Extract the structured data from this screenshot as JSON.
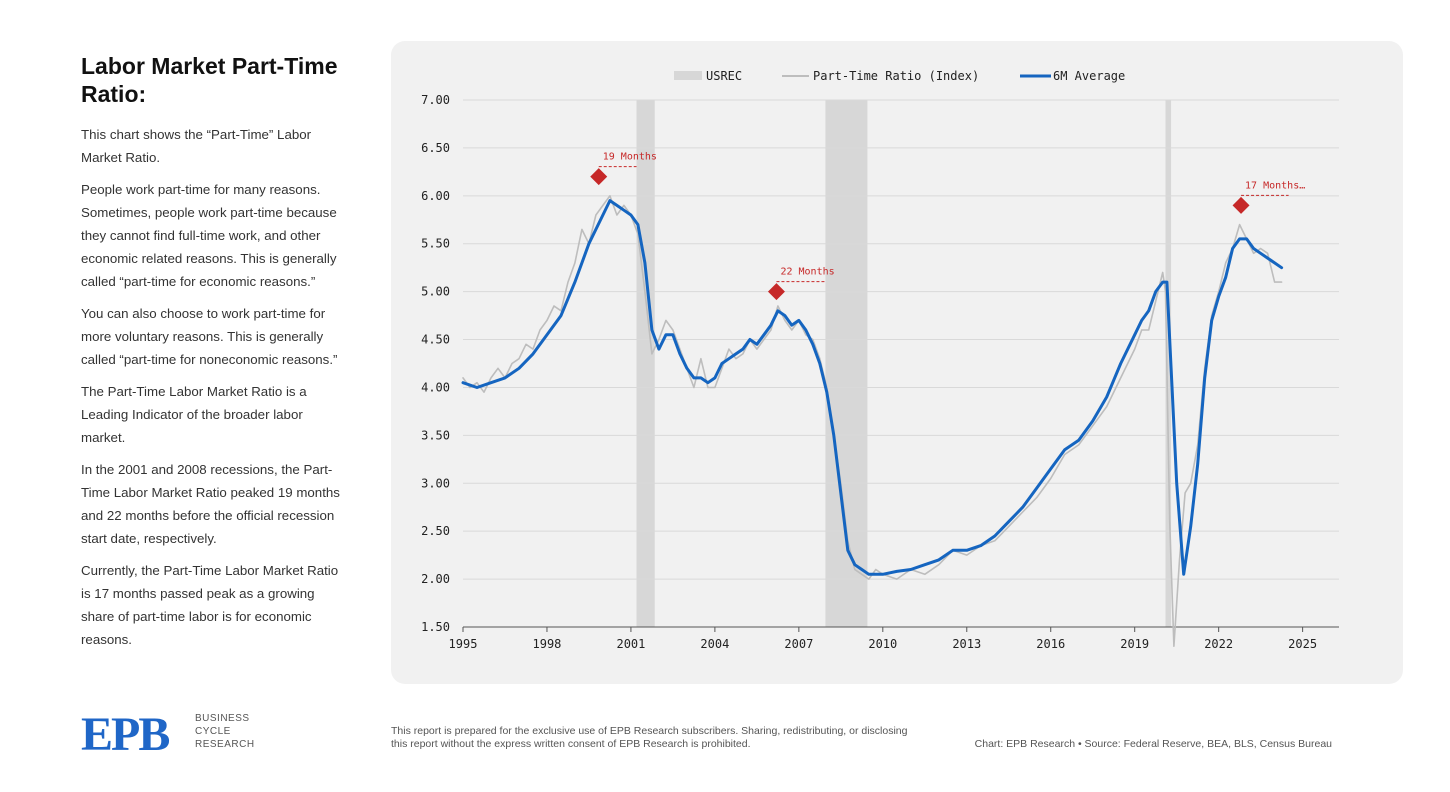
{
  "sidebar": {
    "title": "Labor Market Part-Time Ratio:",
    "paragraphs": [
      "This chart shows the “Part-Time” Labor Market Ratio.",
      "People work part-time for many reasons. Sometimes, people work part-time because they cannot find full-time work, and other economic related reasons. This is generally called “part-time for economic reasons.”",
      "You can also choose to work part-time for more voluntary reasons. This is generally called “part-time for noneconomic reasons.”",
      "The Part-Time Labor Market Ratio is a Leading Indicator of the broader labor market.",
      "In the 2001 and 2008 recessions, the Part-Time Labor Market Ratio peaked 19 months and 22 months before the official recession start date, respectively.",
      "Currently, the Part-Time Labor Market Ratio is 17 months passed peak as a growing share of part-time labor is for economic reasons."
    ]
  },
  "logo": {
    "mark": "EPB",
    "line1": "BUSINESS",
    "line2": "CYCLE",
    "line3": "RESEARCH",
    "color": "#1f66c7"
  },
  "footer": {
    "disclaimer": "This report is prepared for the exclusive use of EPB Research subscribers. Sharing, redistributing, or disclosing this report without the express written consent of EPB Research is prohibited.",
    "credit": "Chart: EPB Research  •  Source: Federal Reserve, BEA, BLS, Census Bureau"
  },
  "chart_data": {
    "type": "line",
    "title": "Labor Market Part-Time Ratio",
    "xlabel": "",
    "ylabel": "",
    "xlim": [
      1995,
      2026.3
    ],
    "ylim": [
      1.5,
      7.0
    ],
    "x_ticks": [
      1995,
      1998,
      2001,
      2004,
      2007,
      2010,
      2013,
      2016,
      2019,
      2022,
      2025
    ],
    "y_ticks": [
      "1.50",
      "2.00",
      "2.50",
      "3.00",
      "3.50",
      "4.00",
      "4.50",
      "5.00",
      "5.50",
      "6.00",
      "6.50",
      "7.00"
    ],
    "grid": true,
    "legend_position": "top",
    "legend": [
      "USREC",
      "Part-Time Ratio (Index)",
      "6M Average"
    ],
    "recessions": [
      {
        "start": 2001.2,
        "end": 2001.85
      },
      {
        "start": 2007.95,
        "end": 2009.45
      },
      {
        "start": 2020.1,
        "end": 2020.3
      }
    ],
    "series": [
      {
        "name": "Part-Time Ratio (Index)",
        "color": "#bdbdbd",
        "x": [
          1995.0,
          1995.25,
          1995.5,
          1995.75,
          1996.0,
          1996.25,
          1996.5,
          1996.75,
          1997.0,
          1997.25,
          1997.5,
          1997.75,
          1998.0,
          1998.25,
          1998.5,
          1998.75,
          1999.0,
          1999.25,
          1999.5,
          1999.75,
          2000.0,
          2000.25,
          2000.5,
          2000.75,
          2001.0,
          2001.25,
          2001.5,
          2001.75,
          2002.0,
          2002.25,
          2002.5,
          2002.75,
          2003.0,
          2003.25,
          2003.5,
          2003.75,
          2004.0,
          2004.25,
          2004.5,
          2004.75,
          2005.0,
          2005.25,
          2005.5,
          2005.75,
          2006.0,
          2006.25,
          2006.5,
          2006.75,
          2007.0,
          2007.25,
          2007.5,
          2007.75,
          2008.0,
          2008.25,
          2008.5,
          2008.75,
          2009.0,
          2009.25,
          2009.5,
          2009.75,
          2010.0,
          2010.5,
          2011.0,
          2011.5,
          2012.0,
          2012.5,
          2013.0,
          2013.5,
          2014.0,
          2014.5,
          2015.0,
          2015.5,
          2016.0,
          2016.5,
          2017.0,
          2017.5,
          2018.0,
          2018.5,
          2019.0,
          2019.25,
          2019.5,
          2019.75,
          2020.0,
          2020.1,
          2020.25,
          2020.4,
          2020.6,
          2020.8,
          2021.0,
          2021.25,
          2021.5,
          2021.75,
          2022.0,
          2022.25,
          2022.5,
          2022.75,
          2023.0,
          2023.25,
          2023.5,
          2023.75,
          2024.0,
          2024.25
        ],
        "values": [
          4.1,
          4.0,
          4.05,
          3.95,
          4.1,
          4.2,
          4.1,
          4.25,
          4.3,
          4.45,
          4.4,
          4.6,
          4.7,
          4.85,
          4.8,
          5.1,
          5.3,
          5.65,
          5.5,
          5.8,
          5.9,
          6.0,
          5.8,
          5.9,
          5.8,
          5.6,
          5.0,
          4.35,
          4.5,
          4.7,
          4.6,
          4.4,
          4.2,
          4.0,
          4.3,
          4.0,
          4.0,
          4.2,
          4.4,
          4.3,
          4.35,
          4.5,
          4.4,
          4.5,
          4.6,
          4.85,
          4.7,
          4.6,
          4.7,
          4.55,
          4.5,
          4.3,
          4.0,
          3.5,
          3.0,
          2.4,
          2.1,
          2.05,
          2.0,
          2.1,
          2.05,
          2.0,
          2.1,
          2.05,
          2.15,
          2.3,
          2.25,
          2.35,
          2.4,
          2.55,
          2.7,
          2.85,
          3.05,
          3.3,
          3.4,
          3.6,
          3.8,
          4.1,
          4.4,
          4.6,
          4.6,
          4.9,
          5.2,
          5.0,
          2.6,
          1.3,
          2.2,
          2.9,
          3.0,
          3.4,
          4.2,
          4.75,
          5.0,
          5.3,
          5.45,
          5.7,
          5.55,
          5.4,
          5.45,
          5.4,
          5.1,
          5.1
        ]
      },
      {
        "name": "6M Average",
        "color": "#1565c0",
        "x": [
          1995.0,
          1995.5,
          1996.0,
          1996.5,
          1997.0,
          1997.5,
          1998.0,
          1998.5,
          1999.0,
          1999.5,
          2000.0,
          2000.25,
          2000.5,
          2000.75,
          2001.0,
          2001.25,
          2001.5,
          2001.75,
          2002.0,
          2002.25,
          2002.5,
          2002.75,
          2003.0,
          2003.25,
          2003.5,
          2003.75,
          2004.0,
          2004.25,
          2004.5,
          2004.75,
          2005.0,
          2005.25,
          2005.5,
          2005.75,
          2006.0,
          2006.25,
          2006.5,
          2006.75,
          2007.0,
          2007.25,
          2007.5,
          2007.75,
          2008.0,
          2008.25,
          2008.5,
          2008.75,
          2009.0,
          2009.25,
          2009.5,
          2009.75,
          2010.0,
          2010.5,
          2011.0,
          2011.5,
          2012.0,
          2012.5,
          2013.0,
          2013.5,
          2014.0,
          2014.5,
          2015.0,
          2015.5,
          2016.0,
          2016.5,
          2017.0,
          2017.5,
          2018.0,
          2018.5,
          2019.0,
          2019.25,
          2019.5,
          2019.75,
          2020.0,
          2020.15,
          2020.3,
          2020.5,
          2020.75,
          2021.0,
          2021.25,
          2021.5,
          2021.75,
          2022.0,
          2022.25,
          2022.5,
          2022.75,
          2023.0,
          2023.25,
          2023.5,
          2023.75,
          2024.0,
          2024.25
        ],
        "values": [
          4.05,
          4.0,
          4.05,
          4.1,
          4.2,
          4.35,
          4.55,
          4.75,
          5.1,
          5.5,
          5.8,
          5.95,
          5.9,
          5.85,
          5.8,
          5.7,
          5.3,
          4.6,
          4.4,
          4.55,
          4.55,
          4.35,
          4.2,
          4.1,
          4.1,
          4.05,
          4.1,
          4.25,
          4.3,
          4.35,
          4.4,
          4.5,
          4.45,
          4.55,
          4.65,
          4.8,
          4.75,
          4.65,
          4.7,
          4.6,
          4.45,
          4.25,
          3.95,
          3.5,
          2.9,
          2.3,
          2.15,
          2.1,
          2.05,
          2.05,
          2.05,
          2.08,
          2.1,
          2.15,
          2.2,
          2.3,
          2.3,
          2.35,
          2.45,
          2.6,
          2.75,
          2.95,
          3.15,
          3.35,
          3.45,
          3.65,
          3.9,
          4.25,
          4.55,
          4.7,
          4.8,
          5.0,
          5.1,
          5.1,
          4.2,
          3.0,
          2.05,
          2.55,
          3.2,
          4.1,
          4.7,
          4.95,
          5.15,
          5.45,
          5.55,
          5.55,
          5.45,
          5.4,
          5.35,
          5.3,
          5.25
        ]
      }
    ],
    "annotations": [
      {
        "label": "19 Months",
        "x": 1999.85,
        "y": 6.2,
        "line_end_x": 2001.2,
        "color": "#c62828"
      },
      {
        "label": "22 Months",
        "x": 2006.2,
        "y": 5.0,
        "line_end_x": 2007.95,
        "color": "#c62828"
      },
      {
        "label": "17 Months…",
        "x": 2022.8,
        "y": 5.9,
        "line_end_x": 2024.5,
        "color": "#c62828"
      }
    ]
  }
}
